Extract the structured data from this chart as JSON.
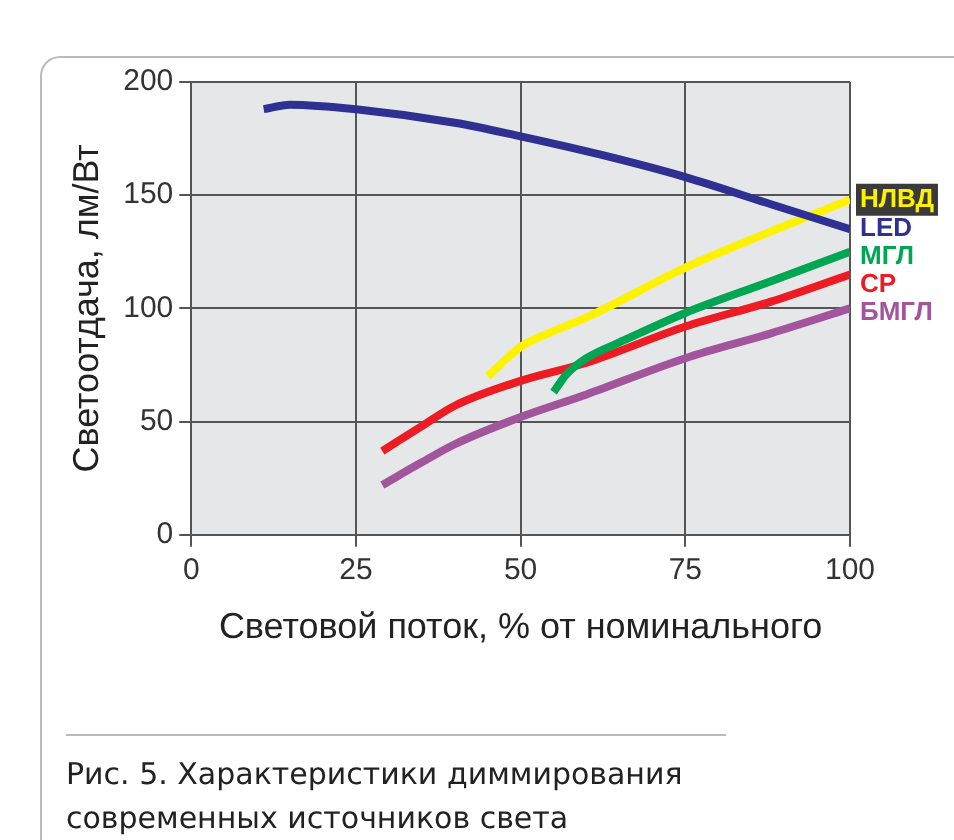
{
  "chart_data": {
    "type": "line",
    "xlabel": "Световой поток, % от номинального",
    "ylabel": "Светоотдача, лм/Вт",
    "xlim": [
      0,
      100
    ],
    "xticks": [
      0,
      25,
      50,
      75,
      100
    ],
    "ylim": [
      0,
      200
    ],
    "yticks": [
      0,
      50,
      100,
      150,
      200
    ],
    "grid": true,
    "legend": false,
    "marker": "none",
    "line_style": "solid",
    "series": [
      {
        "name": "LED",
        "color": "#2e3192",
        "x": [
          11,
          15,
          25,
          40,
          50,
          62,
          75,
          88,
          100
        ],
        "values": [
          188,
          190,
          188,
          182,
          176,
          168,
          158,
          146,
          135
        ]
      },
      {
        "name": "НЛВД",
        "color": "#fff200",
        "x": [
          45,
          50,
          55,
          60,
          75,
          88,
          100
        ],
        "values": [
          70,
          83,
          90,
          96,
          118,
          134,
          148
        ]
      },
      {
        "name": "МГЛ",
        "color": "#00a651",
        "x": [
          55,
          57,
          60,
          65,
          75,
          88,
          100
        ],
        "values": [
          63,
          71,
          78,
          85,
          98,
          112,
          125
        ]
      },
      {
        "name": "СР",
        "color": "#ed1c24",
        "x": [
          29,
          35,
          40,
          50,
          60,
          75,
          88,
          100
        ],
        "values": [
          37,
          48,
          57,
          68,
          76,
          92,
          103,
          115
        ]
      },
      {
        "name": "БМГЛ",
        "color": "#a2559c",
        "x": [
          29,
          35,
          40,
          50,
          60,
          75,
          88,
          100
        ],
        "values": [
          22,
          32,
          40,
          52,
          62,
          78,
          89,
          100
        ]
      }
    ],
    "annotations": [
      "Рис. 5. Характеристики диммирования современных источников света"
    ]
  }
}
